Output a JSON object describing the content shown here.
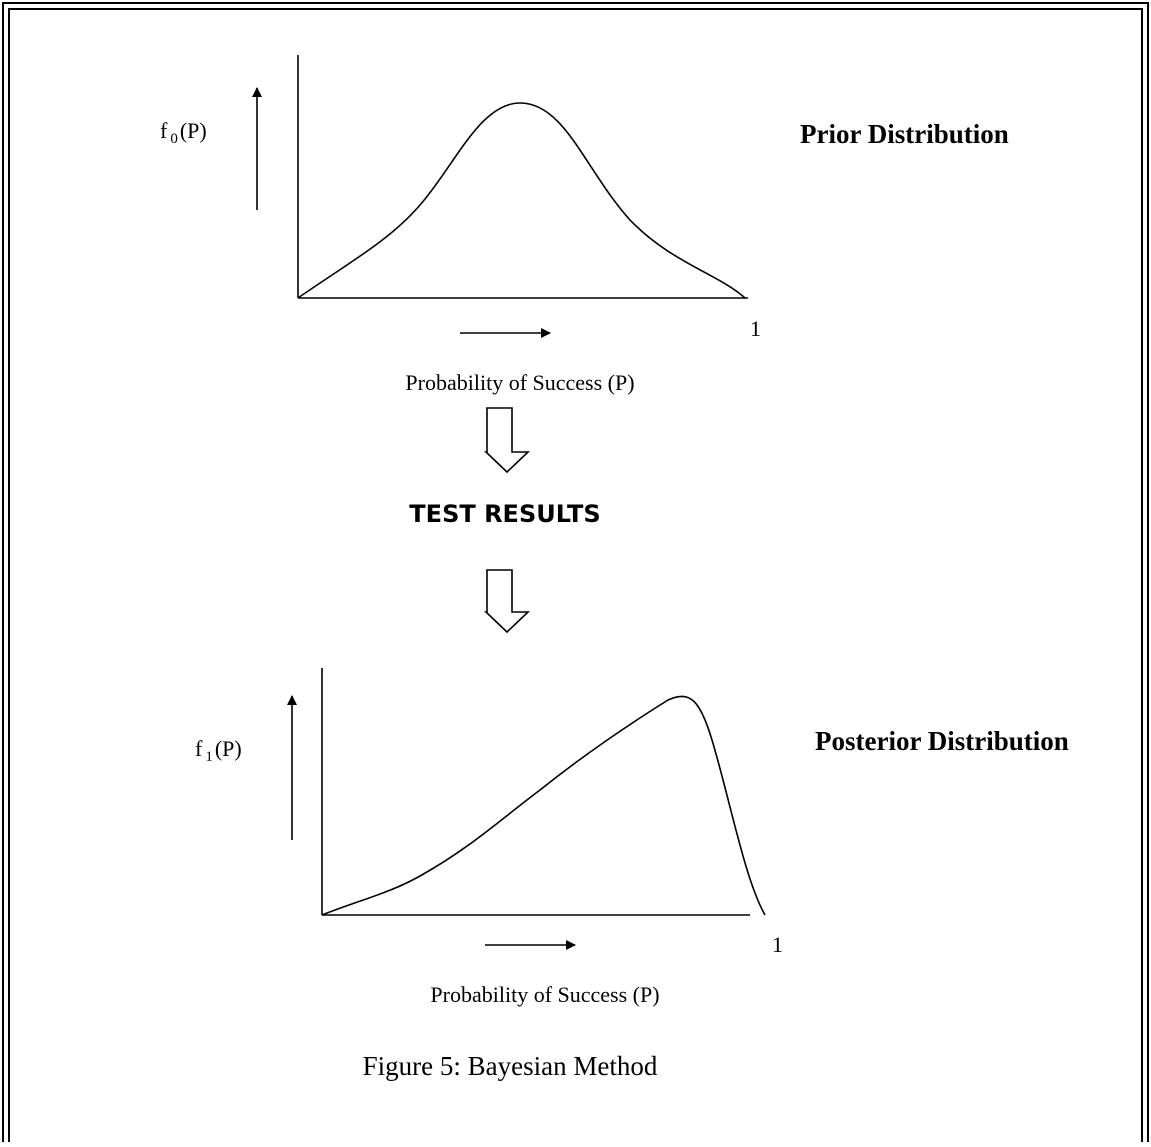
{
  "prior": {
    "y_label_main": "f",
    "y_label_sub": "0",
    "y_label_tail": "(P)",
    "x_end": "1",
    "x_label": "Probability of Success (P)",
    "title": "Prior Distribution"
  },
  "middle": "TEST RESULTS",
  "posterior": {
    "y_label_main": "f",
    "y_label_sub": "1",
    "y_label_tail": "(P)",
    "x_end": "1",
    "x_label": "Probability of Success (P)",
    "title": "Posterior Distribution"
  },
  "caption": "Figure 5: Bayesian Method"
}
